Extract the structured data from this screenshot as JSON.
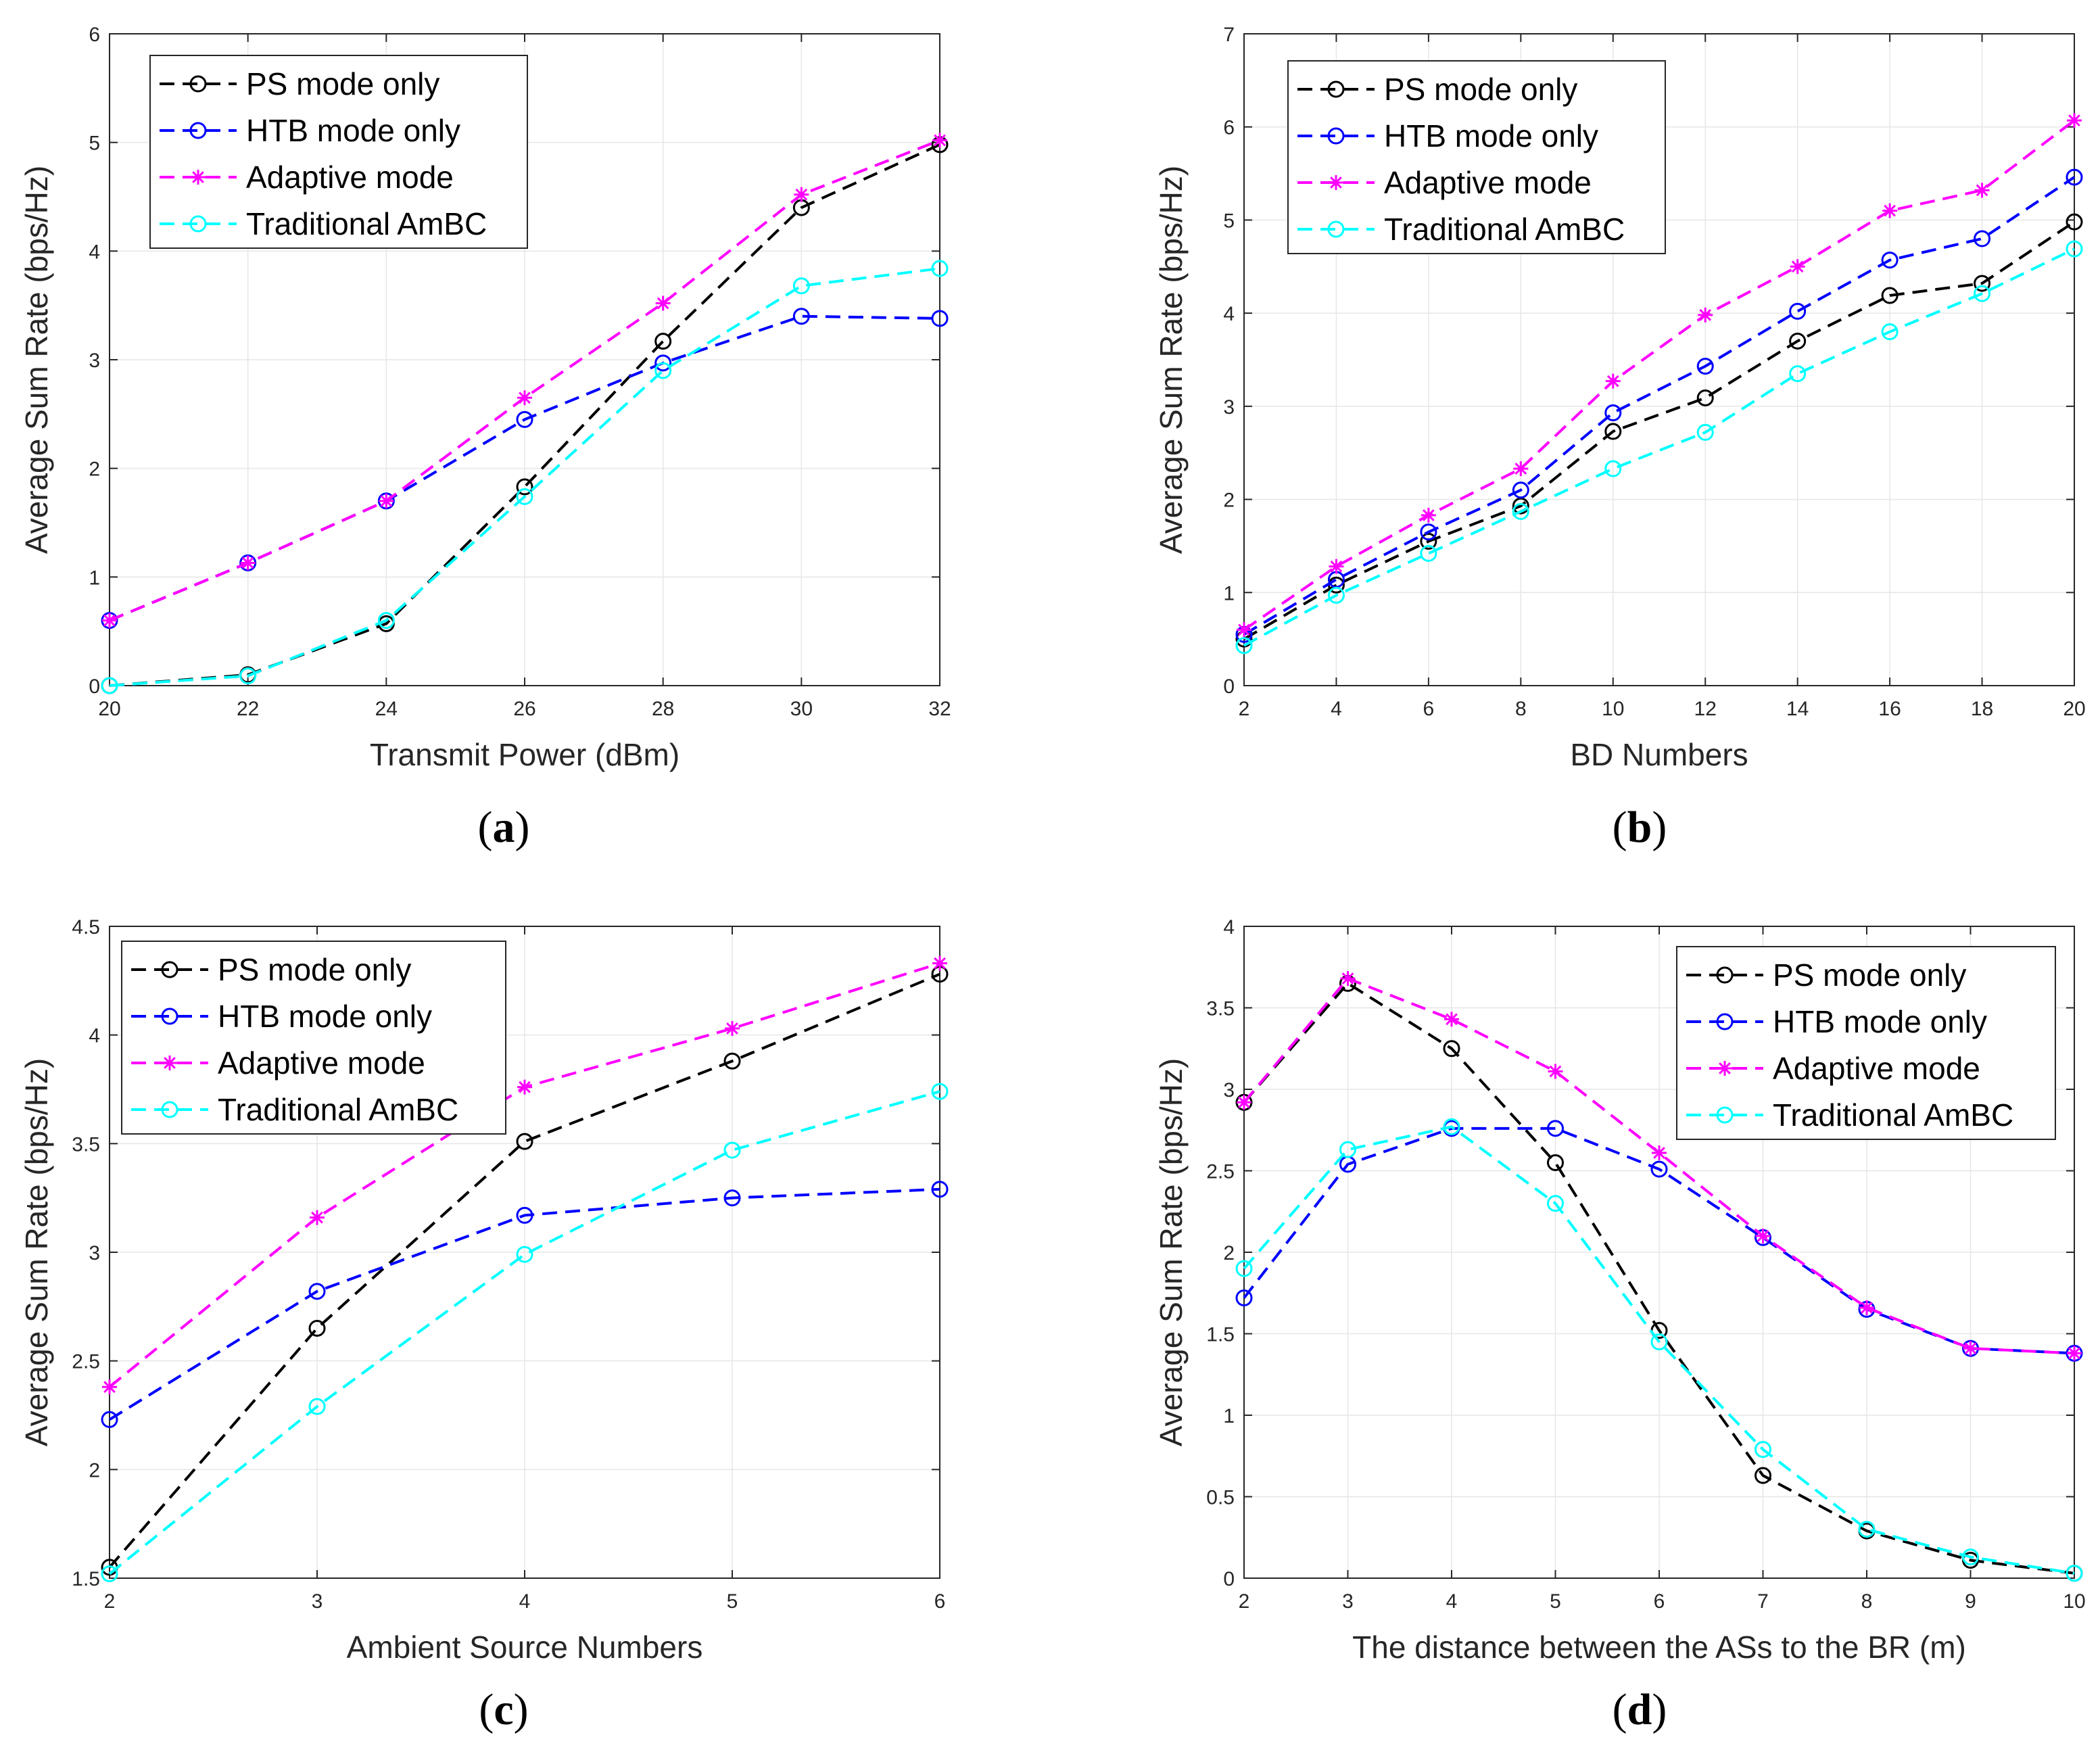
{
  "colors": {
    "PS mode only": "#000000",
    "HTB mode only": "#0000ff",
    "Adaptive mode": "#ff00ff",
    "Traditional AmBC": "#00ffff",
    "grid": "#e6e6e6",
    "axis": "#262626"
  },
  "chart_data": [
    {
      "type": "line",
      "caption": "a",
      "xlabel": "Transmit Power (dBm)",
      "ylabel": "Average Sum Rate (bps/Hz)",
      "xlim": [
        20,
        32
      ],
      "ylim": [
        0,
        6
      ],
      "xticks": [
        20,
        22,
        24,
        26,
        28,
        30,
        32
      ],
      "yticks": [
        0,
        1,
        2,
        3,
        4,
        5,
        6
      ],
      "grid": true,
      "legend_position": "top-left",
      "x": [
        20,
        22,
        24,
        26,
        28,
        30,
        32
      ],
      "series": [
        {
          "name": "PS mode only",
          "marker": "circle",
          "values": [
            0.0,
            0.1,
            0.57,
            1.83,
            3.17,
            4.4,
            4.98
          ]
        },
        {
          "name": "HTB mode only",
          "marker": "circle",
          "values": [
            0.6,
            1.13,
            1.7,
            2.45,
            2.97,
            3.4,
            3.38
          ]
        },
        {
          "name": "Adaptive mode",
          "marker": "star",
          "values": [
            0.6,
            1.13,
            1.7,
            2.65,
            3.52,
            4.52,
            5.02
          ]
        },
        {
          "name": "Traditional AmBC",
          "marker": "circle",
          "values": [
            0.0,
            0.09,
            0.6,
            1.74,
            2.9,
            3.68,
            3.84
          ]
        }
      ]
    },
    {
      "type": "line",
      "caption": "b",
      "xlabel": "BD Numbers",
      "ylabel": "Average Sum Rate (bps/Hz)",
      "xlim": [
        2,
        20
      ],
      "ylim": [
        0,
        7
      ],
      "xticks": [
        2,
        4,
        6,
        8,
        10,
        12,
        14,
        16,
        18,
        20
      ],
      "yticks": [
        0,
        1,
        2,
        3,
        4,
        5,
        6,
        7
      ],
      "grid": true,
      "legend_position": "top-left",
      "x": [
        2,
        4,
        6,
        8,
        10,
        12,
        14,
        16,
        18,
        20
      ],
      "series": [
        {
          "name": "PS mode only",
          "marker": "circle",
          "values": [
            0.5,
            1.08,
            1.55,
            1.93,
            2.73,
            3.09,
            3.7,
            4.19,
            4.32,
            4.98
          ]
        },
        {
          "name": "HTB mode only",
          "marker": "circle",
          "values": [
            0.55,
            1.14,
            1.65,
            2.1,
            2.93,
            3.43,
            4.02,
            4.57,
            4.8,
            5.46
          ]
        },
        {
          "name": "Adaptive mode",
          "marker": "star",
          "values": [
            0.6,
            1.28,
            1.83,
            2.33,
            3.27,
            3.98,
            4.5,
            5.1,
            5.32,
            6.07
          ]
        },
        {
          "name": "Traditional AmBC",
          "marker": "circle",
          "values": [
            0.43,
            0.97,
            1.42,
            1.87,
            2.33,
            2.72,
            3.35,
            3.8,
            4.21,
            4.69
          ]
        }
      ]
    },
    {
      "type": "line",
      "caption": "c",
      "xlabel": "Ambient Source Numbers",
      "ylabel": "Average Sum Rate (bps/Hz)",
      "xlim": [
        2,
        6
      ],
      "ylim": [
        1.5,
        4.5
      ],
      "xticks": [
        2,
        3,
        4,
        5,
        6
      ],
      "yticks": [
        1.5,
        2,
        2.5,
        3,
        3.5,
        4,
        4.5
      ],
      "grid": true,
      "legend_position": "top-left",
      "x": [
        2,
        3,
        4,
        5,
        6
      ],
      "series": [
        {
          "name": "PS mode only",
          "marker": "circle",
          "values": [
            1.55,
            2.65,
            3.51,
            3.88,
            4.28
          ]
        },
        {
          "name": "HTB mode only",
          "marker": "circle",
          "values": [
            2.23,
            2.82,
            3.17,
            3.25,
            3.29
          ]
        },
        {
          "name": "Adaptive mode",
          "marker": "star",
          "values": [
            2.38,
            3.16,
            3.76,
            4.03,
            4.33
          ]
        },
        {
          "name": "Traditional AmBC",
          "marker": "circle",
          "values": [
            1.52,
            2.29,
            2.99,
            3.47,
            3.74
          ]
        }
      ]
    },
    {
      "type": "line",
      "caption": "d",
      "xlabel": "The distance between the ASs to the BR (m)",
      "ylabel": "Average Sum Rate (bps/Hz)",
      "xlim": [
        2,
        10
      ],
      "ylim": [
        0,
        4
      ],
      "xticks": [
        2,
        3,
        4,
        5,
        6,
        7,
        8,
        9,
        10
      ],
      "yticks": [
        0,
        0.5,
        1,
        1.5,
        2,
        2.5,
        3,
        3.5,
        4
      ],
      "grid": true,
      "legend_position": "top-right",
      "x": [
        2,
        3,
        4,
        5,
        6,
        7,
        8,
        9,
        10
      ],
      "series": [
        {
          "name": "PS mode only",
          "marker": "circle",
          "values": [
            2.92,
            3.65,
            3.25,
            2.55,
            1.52,
            0.63,
            0.29,
            0.11,
            0.03
          ]
        },
        {
          "name": "HTB mode only",
          "marker": "circle",
          "values": [
            1.72,
            2.54,
            2.76,
            2.76,
            2.51,
            2.09,
            1.65,
            1.41,
            1.38
          ]
        },
        {
          "name": "Adaptive mode",
          "marker": "star",
          "values": [
            2.92,
            3.68,
            3.43,
            3.11,
            2.61,
            2.1,
            1.66,
            1.41,
            1.38
          ]
        },
        {
          "name": "Traditional AmBC",
          "marker": "circle",
          "values": [
            1.9,
            2.63,
            2.77,
            2.3,
            1.45,
            0.79,
            0.3,
            0.13,
            0.03
          ]
        }
      ]
    }
  ]
}
